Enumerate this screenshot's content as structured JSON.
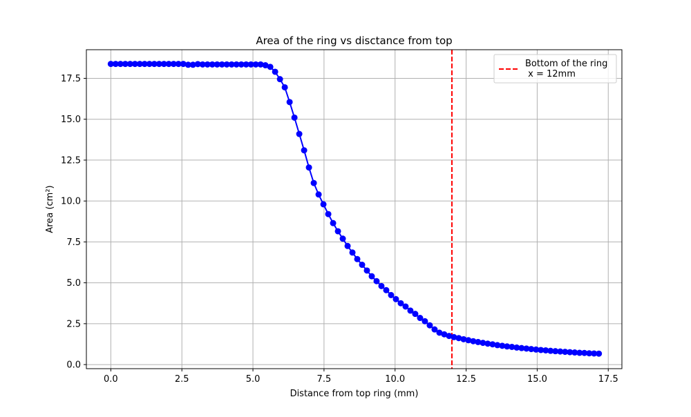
{
  "chart_data": {
    "type": "line",
    "title": "Area of the ring vs disctance from top",
    "xlabel": "Distance from top ring (mm)",
    "ylabel": "Area (cm²)",
    "xlim": [
      -0.86,
      17.98
    ],
    "ylim": [
      -0.25,
      19.25
    ],
    "x_ticks": [
      0.0,
      2.5,
      5.0,
      7.5,
      10.0,
      12.5,
      15.0,
      17.5
    ],
    "x_tick_labels": [
      "0.0",
      "2.5",
      "5.0",
      "7.5",
      "10.0",
      "12.5",
      "15.0",
      "17.5"
    ],
    "y_ticks": [
      0.0,
      2.5,
      5.0,
      7.5,
      10.0,
      12.5,
      15.0,
      17.5
    ],
    "y_tick_labels": [
      "0.0",
      "2.5",
      "5.0",
      "7.5",
      "10.0",
      "12.5",
      "15.0",
      "17.5"
    ],
    "grid": true,
    "legend_position": "top-right",
    "series": [
      {
        "color": "#0000ff",
        "marker": "circle",
        "x": [
          0.0,
          0.17,
          0.34,
          0.51,
          0.68,
          0.85,
          1.02,
          1.19,
          1.36,
          1.53,
          1.7,
          1.87,
          2.04,
          2.21,
          2.38,
          2.55,
          2.72,
          2.89,
          3.06,
          3.23,
          3.4,
          3.57,
          3.74,
          3.91,
          4.08,
          4.25,
          4.42,
          4.59,
          4.76,
          4.93,
          5.1,
          5.27,
          5.44,
          5.61,
          5.78,
          5.95,
          6.12,
          6.29,
          6.46,
          6.63,
          6.8,
          6.97,
          7.14,
          7.31,
          7.48,
          7.65,
          7.82,
          7.99,
          8.16,
          8.33,
          8.5,
          8.67,
          8.84,
          9.01,
          9.18,
          9.35,
          9.52,
          9.69,
          9.86,
          10.03,
          10.2,
          10.37,
          10.54,
          10.71,
          10.88,
          11.05,
          11.22,
          11.39,
          11.56,
          11.73,
          11.9,
          12.07,
          12.24,
          12.41,
          12.58,
          12.75,
          12.92,
          13.09,
          13.26,
          13.43,
          13.6,
          13.77,
          13.94,
          14.11,
          14.28,
          14.45,
          14.62,
          14.79,
          14.96,
          15.13,
          15.3,
          15.47,
          15.64,
          15.81,
          15.98,
          16.15,
          16.32,
          16.49,
          16.66,
          16.83,
          17.0,
          17.17
        ],
        "values": [
          18.38,
          18.38,
          18.38,
          18.38,
          18.38,
          18.38,
          18.38,
          18.38,
          18.38,
          18.38,
          18.38,
          18.38,
          18.38,
          18.38,
          18.38,
          18.38,
          18.33,
          18.33,
          18.37,
          18.35,
          18.35,
          18.35,
          18.35,
          18.35,
          18.35,
          18.35,
          18.35,
          18.35,
          18.35,
          18.35,
          18.35,
          18.35,
          18.3,
          18.2,
          17.9,
          17.45,
          16.95,
          16.05,
          15.1,
          14.1,
          13.1,
          12.05,
          11.1,
          10.4,
          9.8,
          9.2,
          8.65,
          8.15,
          7.7,
          7.25,
          6.85,
          6.45,
          6.1,
          5.75,
          5.4,
          5.1,
          4.8,
          4.55,
          4.25,
          4.0,
          3.75,
          3.55,
          3.3,
          3.1,
          2.85,
          2.65,
          2.4,
          2.15,
          1.95,
          1.85,
          1.75,
          1.68,
          1.62,
          1.55,
          1.49,
          1.43,
          1.38,
          1.33,
          1.28,
          1.24,
          1.19,
          1.15,
          1.11,
          1.08,
          1.04,
          1.01,
          0.98,
          0.95,
          0.92,
          0.89,
          0.87,
          0.84,
          0.82,
          0.8,
          0.78,
          0.76,
          0.74,
          0.72,
          0.71,
          0.69,
          0.68,
          0.67
        ]
      }
    ],
    "vline": {
      "x": 12.0,
      "color": "#ff0000",
      "style": "dashed",
      "label": "Bottom of the ring\n x = 12mm"
    }
  }
}
